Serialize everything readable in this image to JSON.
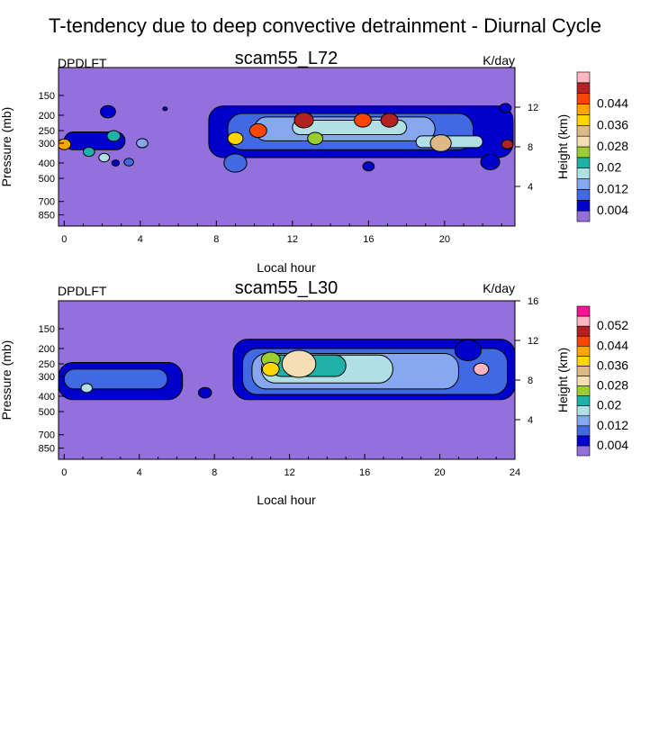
{
  "figure": {
    "title": "T-tendency due to deep convective detrainment - Diurnal Cycle"
  },
  "colors": {
    "background_level": "#9370DB",
    "outline": "#000000",
    "palette": [
      "#9370DB",
      "#0000CD",
      "#4169E1",
      "#87A8F0",
      "#B0E0E6",
      "#20B2AA",
      "#9ACD32",
      "#F5DEB3",
      "#DEB887",
      "#FFD700",
      "#FFA500",
      "#FF4500",
      "#B22222",
      "#FFB6C1",
      "#FF1493"
    ]
  },
  "chart_data": [
    {
      "type": "heatmap",
      "variable": "DPDLFT",
      "title": "scam55_L72",
      "units": "K/day",
      "xlabel": "Local hour",
      "ylabel": "Pressure (mb)",
      "right_ylabel": "Height (km)",
      "x_ticks": [
        "0",
        "4",
        "8",
        "12",
        "16",
        "20"
      ],
      "x_tick_values": [
        0,
        4,
        8,
        12,
        16,
        20
      ],
      "xlim": [
        -0.3,
        23.7
      ],
      "y_ticks": [
        "150",
        "200",
        "250",
        "300",
        "400",
        "500",
        "700",
        "850"
      ],
      "y_tick_values": [
        150,
        200,
        250,
        300,
        400,
        500,
        700,
        850
      ],
      "ylim_pressure": [
        100,
        1000
      ],
      "right_ticks": [
        "4",
        "8",
        "12"
      ],
      "right_tick_values": [
        4,
        8,
        12
      ],
      "right_ylim": [
        0,
        16
      ],
      "colorbar_levels": [
        0.004,
        0.008,
        0.012,
        0.016,
        0.02,
        0.024,
        0.028,
        0.032,
        0.036,
        0.04,
        0.044,
        0.048,
        0.052
      ],
      "colorbar_labels": [
        "0.004",
        "0.012",
        "0.02",
        "0.028",
        "0.036",
        "0.044"
      ],
      "features": [
        {
          "kind": "band",
          "x0": 7.6,
          "x1": 23.6,
          "p_top": 175,
          "p_bot": 370,
          "level": 1
        },
        {
          "kind": "band",
          "x0": 8.6,
          "x1": 21.5,
          "p_top": 195,
          "p_bot": 330,
          "level": 2
        },
        {
          "kind": "band",
          "x0": 10.0,
          "x1": 19.5,
          "p_top": 205,
          "p_bot": 290,
          "level": 3
        },
        {
          "kind": "band",
          "x0": 12.0,
          "x1": 18.0,
          "p_top": 215,
          "p_bot": 265,
          "level": 4
        },
        {
          "kind": "band",
          "x0": 18.5,
          "x1": 22.0,
          "p_top": 270,
          "p_bot": 320,
          "level": 4
        },
        {
          "kind": "band",
          "x0": 0.0,
          "x1": 3.2,
          "p_top": 255,
          "p_bot": 330,
          "level": 1
        },
        {
          "kind": "spot",
          "x": 12.6,
          "p": 215,
          "r": 0.5,
          "level": 12
        },
        {
          "kind": "spot",
          "x": 15.7,
          "p": 215,
          "r": 0.45,
          "level": 11
        },
        {
          "kind": "spot",
          "x": 17.1,
          "p": 215,
          "r": 0.45,
          "level": 12
        },
        {
          "kind": "spot",
          "x": 10.2,
          "p": 250,
          "r": 0.45,
          "level": 11
        },
        {
          "kind": "spot",
          "x": 9.0,
          "p": 280,
          "r": 0.4,
          "level": 9
        },
        {
          "kind": "spot",
          "x": 19.8,
          "p": 300,
          "r": 0.55,
          "level": 8
        },
        {
          "kind": "spot",
          "x": 13.2,
          "p": 280,
          "r": 0.4,
          "level": 6
        },
        {
          "kind": "spot",
          "x": 23.3,
          "p": 305,
          "r": 0.3,
          "level": 12
        },
        {
          "kind": "spot",
          "x": 0.0,
          "p": 305,
          "r": 0.35,
          "level": 10
        },
        {
          "kind": "spot",
          "x": 2.6,
          "p": 270,
          "r": 0.35,
          "level": 5
        },
        {
          "kind": "spot",
          "x": 1.3,
          "p": 340,
          "r": 0.3,
          "level": 5
        },
        {
          "kind": "spot",
          "x": 2.1,
          "p": 370,
          "r": 0.28,
          "level": 4
        },
        {
          "kind": "spot",
          "x": 4.1,
          "p": 300,
          "r": 0.3,
          "level": 3
        },
        {
          "kind": "spot",
          "x": 3.4,
          "p": 395,
          "r": 0.25,
          "level": 2
        },
        {
          "kind": "spot",
          "x": 2.7,
          "p": 400,
          "r": 0.2,
          "level": 1
        },
        {
          "kind": "spot",
          "x": 9.0,
          "p": 400,
          "r": 0.6,
          "level": 2
        },
        {
          "kind": "spot",
          "x": 22.4,
          "p": 395,
          "r": 0.5,
          "level": 1
        },
        {
          "kind": "spot",
          "x": 23.2,
          "p": 180,
          "r": 0.3,
          "level": 1
        },
        {
          "kind": "spot",
          "x": 2.3,
          "p": 190,
          "r": 0.4,
          "level": 1
        },
        {
          "kind": "spot",
          "x": 5.3,
          "p": 182,
          "r": 0.12,
          "level": 1
        },
        {
          "kind": "spot",
          "x": 16.0,
          "p": 420,
          "r": 0.3,
          "level": 1
        }
      ]
    },
    {
      "type": "heatmap",
      "variable": "DPDLFT",
      "title": "scam55_L30",
      "units": "K/day",
      "xlabel": "Local hour",
      "ylabel": "Pressure (mb)",
      "right_ylabel": "Height (km)",
      "x_ticks": [
        "0",
        "4",
        "8",
        "12",
        "16",
        "20",
        "24"
      ],
      "x_tick_values": [
        0,
        4,
        8,
        12,
        16,
        20,
        24
      ],
      "xlim": [
        -0.3,
        24
      ],
      "y_ticks": [
        "150",
        "200",
        "250",
        "300",
        "400",
        "500",
        "700",
        "850"
      ],
      "y_tick_values": [
        150,
        200,
        250,
        300,
        400,
        500,
        700,
        850
      ],
      "ylim_pressure": [
        100,
        1000
      ],
      "right_ticks": [
        "4",
        "8",
        "12",
        "16"
      ],
      "right_tick_values": [
        4,
        8,
        12,
        16
      ],
      "right_ylim": [
        0,
        16
      ],
      "colorbar_levels": [
        0.004,
        0.008,
        0.012,
        0.016,
        0.02,
        0.024,
        0.028,
        0.032,
        0.036,
        0.04,
        0.044,
        0.048,
        0.052,
        0.056
      ],
      "colorbar_labels": [
        "0.004",
        "0.012",
        "0.02",
        "0.028",
        "0.036",
        "0.044",
        "0.052"
      ],
      "features": [
        {
          "kind": "band",
          "x0": -0.3,
          "x1": 6.3,
          "p_top": 245,
          "p_bot": 420,
          "level": 1
        },
        {
          "kind": "band",
          "x0": 0.0,
          "x1": 5.5,
          "p_top": 270,
          "p_bot": 360,
          "level": 2
        },
        {
          "kind": "band",
          "x0": 9.0,
          "x1": 24.0,
          "p_top": 175,
          "p_bot": 420,
          "level": 1
        },
        {
          "kind": "band",
          "x0": 9.5,
          "x1": 23.6,
          "p_top": 200,
          "p_bot": 390,
          "level": 2
        },
        {
          "kind": "band",
          "x0": 10.0,
          "x1": 21.0,
          "p_top": 215,
          "p_bot": 360,
          "level": 3
        },
        {
          "kind": "band",
          "x0": 10.5,
          "x1": 17.5,
          "p_top": 220,
          "p_bot": 330,
          "level": 4
        },
        {
          "kind": "band",
          "x0": 11.0,
          "x1": 15.0,
          "p_top": 220,
          "p_bot": 300,
          "level": 5
        },
        {
          "kind": "spot",
          "x": 12.5,
          "p": 250,
          "r": 0.9,
          "level": 7
        },
        {
          "kind": "spot",
          "x": 11.0,
          "p": 235,
          "r": 0.5,
          "level": 6
        },
        {
          "kind": "spot",
          "x": 11.0,
          "p": 270,
          "r": 0.45,
          "level": 9
        },
        {
          "kind": "spot",
          "x": 22.2,
          "p": 270,
          "r": 0.4,
          "level": 13
        },
        {
          "kind": "spot",
          "x": 1.2,
          "p": 355,
          "r": 0.3,
          "level": 4
        },
        {
          "kind": "spot",
          "x": 7.5,
          "p": 380,
          "r": 0.35,
          "level": 1
        },
        {
          "kind": "spot",
          "x": 21.5,
          "p": 205,
          "r": 0.7,
          "level": 1
        }
      ]
    }
  ]
}
